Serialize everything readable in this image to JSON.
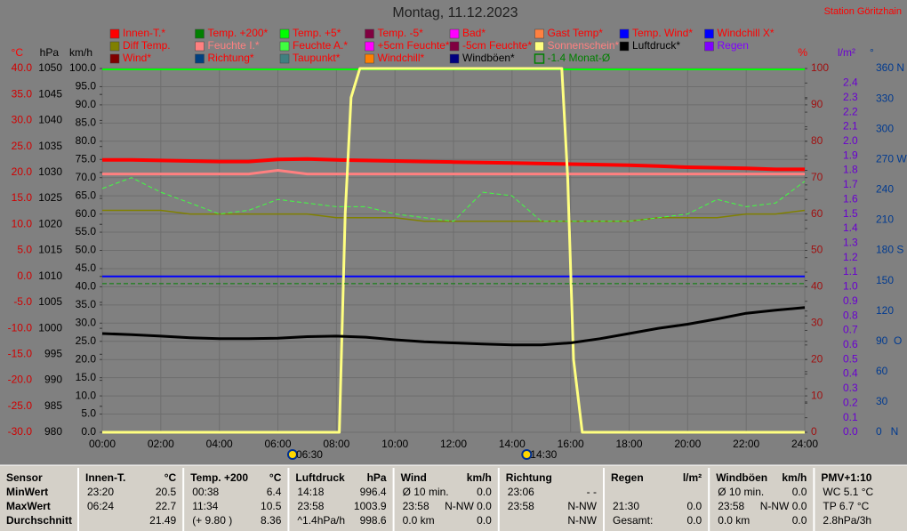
{
  "chart_data": {
    "type": "line",
    "title": "Montag, 11.12.2023",
    "station": "Station Göritzhain",
    "xlim": [
      0,
      24
    ],
    "xticks": [
      {
        "value": 0,
        "label": "00:00"
      },
      {
        "value": 2,
        "label": "02:00"
      },
      {
        "value": 4,
        "label": "04:00"
      },
      {
        "value": 6,
        "label": "06:00"
      },
      {
        "value": 8,
        "label": "08:00"
      },
      {
        "value": 10,
        "label": "10:00"
      },
      {
        "value": 12,
        "label": "12:00"
      },
      {
        "value": 14,
        "label": "14:00"
      },
      {
        "value": 16,
        "label": "16:00"
      },
      {
        "value": 18,
        "label": "18:00"
      },
      {
        "value": 20,
        "label": "20:00"
      },
      {
        "value": 22,
        "label": "22:00"
      },
      {
        "value": 24,
        "label": "24:00"
      }
    ],
    "sun": [
      {
        "value": 6.5,
        "label": "06:30"
      },
      {
        "value": 14.5,
        "label": "14:30"
      }
    ],
    "ylabel": "°C",
    "ylim": [
      -30,
      40
    ],
    "yticks": [
      {
        "value": -30,
        "label": "-30.0"
      },
      {
        "value": -25,
        "label": "-25.0"
      },
      {
        "value": -20,
        "label": "-20.0"
      },
      {
        "value": -15,
        "label": "-15.0"
      },
      {
        "value": -10,
        "label": "-10.0"
      },
      {
        "value": -5,
        "label": "-5.0"
      },
      {
        "value": 0,
        "label": "0.0"
      },
      {
        "value": 5,
        "label": "5.0"
      },
      {
        "value": 10,
        "label": "10.0"
      },
      {
        "value": 15,
        "label": "15.0"
      },
      {
        "value": 20,
        "label": "20.0"
      },
      {
        "value": 25,
        "label": "25.0"
      },
      {
        "value": 30,
        "label": "30.0"
      },
      {
        "value": 35,
        "label": "35.0"
      },
      {
        "value": 40,
        "label": "40.0"
      }
    ],
    "y2label": "hPa",
    "y2lim": [
      980,
      1050
    ],
    "y2ticks": [
      980,
      985,
      990,
      995,
      1000,
      1005,
      1010,
      1015,
      1020,
      1025,
      1030,
      1035,
      1040,
      1045,
      1050
    ],
    "y3label": "km/h",
    "y3lim": [
      0,
      100
    ],
    "y3ticks": [
      {
        "value": 0,
        "label": "0.0"
      },
      {
        "value": 5,
        "label": "5.0"
      },
      {
        "value": 10,
        "label": "10.0"
      },
      {
        "value": 15,
        "label": "15.0"
      },
      {
        "value": 20,
        "label": "20.0"
      },
      {
        "value": 25,
        "label": "25.0"
      },
      {
        "value": 30,
        "label": "30.0"
      },
      {
        "value": 35,
        "label": "35.0"
      },
      {
        "value": 40,
        "label": "40.0"
      },
      {
        "value": 45,
        "label": "45.0"
      },
      {
        "value": 50,
        "label": "50.0"
      },
      {
        "value": 55,
        "label": "55.0"
      },
      {
        "value": 60,
        "label": "60.0"
      },
      {
        "value": 65,
        "label": "65.0"
      },
      {
        "value": 70,
        "label": "70.0"
      },
      {
        "value": 75,
        "label": "75.0"
      },
      {
        "value": 80,
        "label": "80.0"
      },
      {
        "value": 85,
        "label": "85.0"
      },
      {
        "value": 90,
        "label": "90.0"
      },
      {
        "value": 95,
        "label": "95.0"
      },
      {
        "value": 100,
        "label": "100.0"
      }
    ],
    "y4label": "%",
    "y4lim": [
      0,
      100
    ],
    "y4ticks": [
      0,
      10,
      20,
      30,
      40,
      50,
      60,
      70,
      80,
      90,
      100
    ],
    "y5label": "l/m²",
    "y5lim": [
      0,
      2.5
    ],
    "y5ticks": [
      {
        "value": 0,
        "label": "0.0"
      },
      0.1,
      0.2,
      0.3,
      0.4,
      0.5,
      0.6,
      0.7,
      0.8,
      0.9,
      {
        "value": 1,
        "label": "1.0"
      },
      1.1,
      1.2,
      1.3,
      1.4,
      1.5,
      1.6,
      1.7,
      1.8,
      1.9,
      {
        "value": 2,
        "label": "2.0"
      },
      2.1,
      2.2,
      2.3,
      2.4
    ],
    "y6label": "°",
    "y6lim": [
      0,
      360
    ],
    "y6ticks": [
      {
        "value": 0,
        "label": "0   N"
      },
      30,
      60,
      {
        "value": 90,
        "label": "90  O"
      },
      120,
      150,
      {
        "value": 180,
        "label": "180 S"
      },
      210,
      240,
      {
        "value": 270,
        "label": "270 W"
      },
      300,
      330,
      {
        "value": 360,
        "label": "360 N"
      }
    ],
    "grid": true,
    "x": [
      0,
      1,
      2,
      3,
      4,
      5,
      6,
      7,
      8,
      9,
      10,
      11,
      12,
      13,
      14,
      15,
      16,
      17,
      18,
      19,
      20,
      21,
      22,
      23,
      24
    ],
    "series": [
      {
        "name": "Innen-T.*",
        "color": "#ff0000",
        "text_color": "#ff0000",
        "axis": "y",
        "width": 4,
        "values": [
          22.4,
          22.4,
          22.3,
          22.2,
          22.1,
          22.1,
          22.5,
          22.6,
          22.4,
          22.3,
          22.2,
          22.1,
          22.0,
          21.9,
          21.8,
          21.7,
          21.6,
          21.5,
          21.4,
          21.2,
          21.0,
          20.9,
          20.8,
          20.6,
          20.6
        ]
      },
      {
        "name": "Temp. +200*",
        "color": "#008000",
        "text_color": "#ff0000"
      },
      {
        "name": "Temp. +5*",
        "color": "#00ff00",
        "text_color": "#ff0000"
      },
      {
        "name": "Temp. -5*",
        "color": "#800040",
        "text_color": "#ff0000"
      },
      {
        "name": "Bad*",
        "color": "#ff00ff",
        "text_color": "#ff0000"
      },
      {
        "name": "Gast Temp*",
        "color": "#ff8040",
        "text_color": "#ff0000"
      },
      {
        "name": "Temp. Wind*",
        "color": "#0000ff",
        "text_color": "#ff0000",
        "axis": "y",
        "width": 2,
        "x": [
          0,
          24
        ],
        "values": [
          0,
          0
        ]
      },
      {
        "name": "Windchill X*",
        "color": "#0000ff",
        "text_color": "#ff0000"
      },
      {
        "name": "Diff Temp.",
        "color": "#808000",
        "text_color": "#ff0000",
        "axis": "y4",
        "width": 1.5,
        "values": [
          61,
          61,
          61,
          60,
          60,
          60,
          60,
          60,
          59,
          59,
          59,
          58,
          58,
          58,
          58,
          58,
          58,
          58,
          58,
          59,
          59,
          59,
          60,
          60,
          61
        ]
      },
      {
        "name": "Feuchte I.*",
        "color": "#ff8080",
        "text_color": "#ff8080",
        "axis": "y4",
        "width": 3,
        "values": [
          71,
          71,
          71,
          71,
          71,
          71,
          72,
          71,
          71,
          71,
          71,
          71,
          71,
          71,
          71,
          71,
          71,
          71,
          71,
          71,
          71,
          71,
          71,
          71,
          71
        ]
      },
      {
        "name": "Feuchte A.*",
        "color": "#40ff40",
        "text_color": "#ff0000",
        "axis": "y4",
        "width": 1,
        "dashed": true,
        "values": [
          67,
          70,
          66,
          63,
          60,
          61,
          64,
          63,
          62,
          62,
          60,
          59,
          58,
          66,
          65,
          58,
          58,
          58,
          58,
          59,
          60,
          64,
          62,
          63,
          69
        ]
      },
      {
        "name": "+5cm Feuchte*",
        "color": "#ff00ff",
        "text_color": "#ff0000"
      },
      {
        "name": "-5cm Feuchte*",
        "color": "#800040",
        "text_color": "#ff0000"
      },
      {
        "name": "Sonnenschein*",
        "color": "#ffff80",
        "text_color": "#ff8080",
        "axis": "y3",
        "width": 3,
        "x": [
          0,
          8.1,
          8.3,
          8.5,
          8.8,
          15.7,
          15.9,
          16.1,
          16.4,
          24
        ],
        "values": [
          0,
          0,
          60,
          92,
          100,
          100,
          70,
          20,
          0,
          0
        ]
      },
      {
        "name": "Luftdruck*",
        "color": "#000000",
        "text_color": "#000000",
        "axis": "y2",
        "width": 3,
        "values": [
          999.0,
          998.8,
          998.5,
          998.2,
          998.0,
          998.0,
          998.1,
          998.4,
          998.5,
          998.3,
          997.8,
          997.4,
          997.2,
          997.0,
          996.8,
          996.8,
          997.2,
          998.0,
          999.0,
          1000.0,
          1000.8,
          1001.8,
          1002.9,
          1003.5,
          1004.0
        ]
      },
      {
        "name": "Regen",
        "color": "#8000ff",
        "text_color": "#8000ff"
      },
      {
        "name": "Wind*",
        "color": "#800000",
        "text_color": "#ff0000"
      },
      {
        "name": "Richtung*",
        "color": "#004080",
        "text_color": "#ff0000"
      },
      {
        "name": "Taupunkt*",
        "color": "#408080",
        "text_color": "#ff0000"
      },
      {
        "name": "Windchill*",
        "color": "#ff8000",
        "text_color": "#ff0000"
      },
      {
        "name": "Windböen*",
        "color": "#000080",
        "text_color": "#000000"
      },
      {
        "name": "-1.4 Monat-Ø",
        "color": "#008000",
        "text_color": "#008000",
        "axis": "y",
        "width": 1,
        "dashed": true,
        "x": [
          0,
          24
        ],
        "values": [
          -1.4,
          -1.4
        ]
      }
    ]
  },
  "stats": {
    "row_labels": [
      "Sensor",
      "MinWert",
      "MaxWert",
      "Durchschnitt"
    ],
    "columns": [
      {
        "header": "Innen-T.",
        "unit": "°C",
        "rows": [
          {
            "left": "23:20",
            "right": "20.5"
          },
          {
            "left": "06:24",
            "right": "22.7"
          },
          {
            "right": "21.49"
          }
        ]
      },
      {
        "header": "Temp. +200",
        "unit": "°C",
        "rows": [
          {
            "left": "00:38",
            "right": "6.4"
          },
          {
            "left": "11:34",
            "right": "10.5"
          },
          {
            "left": "(+ 9.80 )",
            "right": "8.36"
          }
        ]
      },
      {
        "header": "Luftdruck",
        "unit": "hPa",
        "rows": [
          {
            "left": "14:18",
            "right": "996.4"
          },
          {
            "left": "23:58",
            "right": "1003.9"
          },
          {
            "left": "^1.4hPa/h",
            "right": "998.6"
          }
        ]
      },
      {
        "header": "Wind",
        "unit": "km/h",
        "rows": [
          {
            "left": "Ø 10 min.",
            "right": "0.0"
          },
          {
            "left": "23:58",
            "right": "N-NW 0.0"
          },
          {
            "left": "0.0 km",
            "right": "0.0"
          }
        ]
      },
      {
        "header": "Richtung",
        "rows": [
          {
            "left": "23:06",
            "right": "- -"
          },
          {
            "left": "23:58",
            "right": "N-NW"
          },
          {
            "right": "N-NW"
          }
        ]
      },
      {
        "header": "Regen",
        "unit": "l/m²",
        "rows": [
          {},
          {
            "left": "21:30",
            "right": "0.0"
          },
          {
            "left": "Gesamt:",
            "right": "0.0"
          }
        ]
      },
      {
        "header": "Windböen",
        "unit": "km/h",
        "rows": [
          {
            "left": "Ø 10 min.",
            "right": "0.0"
          },
          {
            "left": "23:58",
            "right": "N-NW 0.0"
          },
          {
            "left": "0.0 km",
            "right": "0.0"
          }
        ]
      },
      {
        "header": "PMV+1:10",
        "rows": [
          {
            "left": "WC 5.1 °C"
          },
          {
            "left": "TP 6.7 °C"
          },
          {
            "left": "2.8hPa/3h"
          }
        ]
      }
    ]
  }
}
